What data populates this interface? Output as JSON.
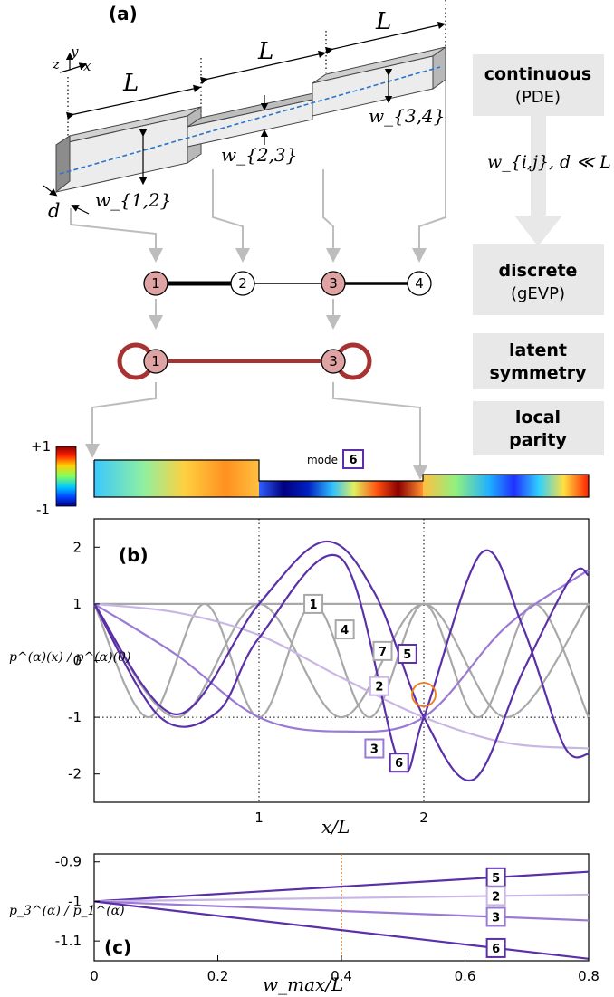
{
  "panels": {
    "a": "(a)",
    "b": "(b)",
    "c": "(c)"
  },
  "schematic": {
    "length_label": "L",
    "width_labels": [
      "w_{1,2}",
      "w_{2,3}",
      "w_{3,4}"
    ],
    "depth_label": "d",
    "axes": [
      "z",
      "y",
      "x"
    ],
    "condition": "w_{i,j}, d ≪ L"
  },
  "side_boxes": [
    {
      "title": "continuous",
      "subtitle": "(PDE)"
    },
    {
      "title": "discrete",
      "subtitle": "(gEVP)"
    },
    {
      "title": "latent",
      "subtitle": "symmetry"
    },
    {
      "title": "local",
      "subtitle": "parity"
    }
  ],
  "graph_nodes": [
    "1",
    "2",
    "3",
    "4"
  ],
  "reduced_nodes": [
    "1",
    "3"
  ],
  "mode_strip": {
    "colorbar_max": "+1",
    "colorbar_min": "-1",
    "mode_label": "mode",
    "mode_number": "6"
  },
  "colors": {
    "gray_curve": "#a8a8a8",
    "light_purple": "#c9b6e4",
    "mid_purple": "#9a7ad4",
    "dark_purple": "#5a2fa8",
    "arrow_gray": "#bdbdbd",
    "node_fill": "#e0a3a3",
    "loop_red": "#a83232",
    "crossing_circle": "#f07d1a"
  },
  "chart_data": [
    {
      "type": "line",
      "panel": "(b)",
      "xlabel": "x/L",
      "ylabel": "p^(α)(x) / p^(α)(0)",
      "xlim": [
        0,
        3
      ],
      "ylim": [
        -2.5,
        2.5
      ],
      "xticks": [
        "1",
        "2"
      ],
      "yticks": [
        "2",
        "1",
        "0",
        "-1",
        "-2"
      ],
      "reference_lines": {
        "y": [
          1,
          -1
        ],
        "x": [
          1,
          2
        ]
      },
      "series": [
        {
          "name": "1",
          "x": [
            0,
            3
          ],
          "y": [
            1,
            1
          ]
        },
        {
          "name": "4",
          "x": [
            0,
            0.5,
            1,
            1.5,
            2,
            2.5,
            3
          ],
          "y": [
            1,
            -1,
            1,
            -1,
            1,
            -1,
            1
          ]
        },
        {
          "name": "7",
          "x": [
            0,
            0.33,
            0.67,
            1,
            1.33,
            1.67,
            2,
            2.33,
            2.67,
            3
          ],
          "y": [
            1,
            -1,
            1,
            -1,
            1,
            -1,
            1,
            -1,
            1,
            -1
          ]
        },
        {
          "name": "2",
          "x": [
            0,
            0.5,
            1,
            1.5,
            2,
            2.5,
            3
          ],
          "y": [
            1,
            0.85,
            0.45,
            -0.3,
            -1,
            -1.45,
            -1.55
          ]
        },
        {
          "name": "3",
          "x": [
            0,
            0.5,
            1,
            1.5,
            2,
            2.5,
            3
          ],
          "y": [
            1,
            0.1,
            -1,
            -1.25,
            -1,
            0.6,
            1.6
          ]
        },
        {
          "name": "5",
          "x": [
            0,
            0.5,
            1,
            1.4,
            1.7,
            2,
            2.3,
            2.6,
            2.9,
            3
          ],
          "y": [
            1,
            -0.95,
            1,
            2.1,
            1.2,
            -1,
            -2.1,
            -0.2,
            1.5,
            1.5
          ]
        },
        {
          "name": "6",
          "x": [
            0,
            0.4,
            0.75,
            1,
            1.5,
            1.85,
            2,
            2.35,
            2.6,
            2.85,
            3
          ],
          "y": [
            1,
            -1,
            -0.9,
            0.4,
            1.8,
            -1.8,
            -1,
            1.9,
            0.6,
            -1.5,
            -1.65
          ]
        }
      ]
    },
    {
      "type": "line",
      "panel": "(c)",
      "xlabel": "w_max/L",
      "ylabel": "p_3^(α) / p_1^(α)",
      "xlim": [
        0,
        0.8
      ],
      "ylim": [
        -1.15,
        -0.88
      ],
      "xticks": [
        "0",
        "0.2",
        "0.4",
        "0.6",
        "0.8"
      ],
      "yticks": [
        "-0.9",
        "-1",
        "-1.1"
      ],
      "reference_lines": {
        "x": [
          0.4
        ]
      },
      "series": [
        {
          "name": "5",
          "x": [
            0,
            0.8
          ],
          "y": [
            -1.0,
            -0.925
          ]
        },
        {
          "name": "2",
          "x": [
            0,
            0.8
          ],
          "y": [
            -1.0,
            -0.983
          ]
        },
        {
          "name": "3",
          "x": [
            0,
            0.8
          ],
          "y": [
            -1.0,
            -1.048
          ]
        },
        {
          "name": "6",
          "x": [
            0,
            0.8
          ],
          "y": [
            -1.0,
            -1.145
          ]
        }
      ]
    }
  ]
}
